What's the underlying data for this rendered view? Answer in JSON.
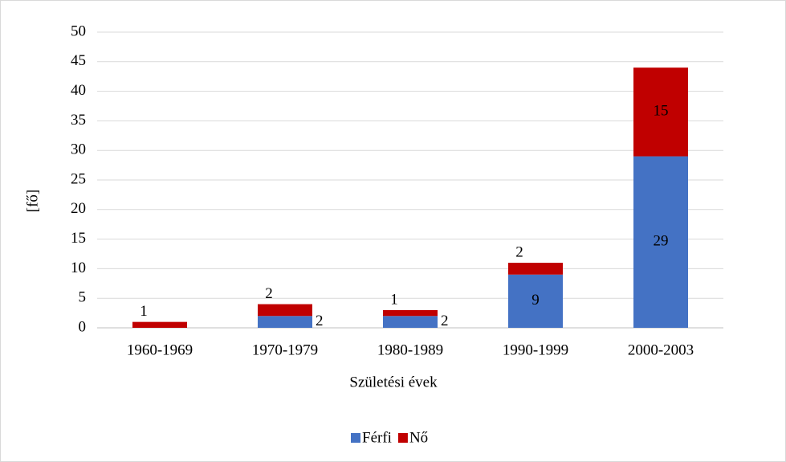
{
  "chart_data": {
    "type": "stacked_bar",
    "categories": [
      "1960-1969",
      "1970-1979",
      "1980-1989",
      "1990-1999",
      "2000-2003"
    ],
    "series": [
      {
        "name": "Férfi",
        "color": "#4472c4",
        "values": [
          null,
          2,
          2,
          9,
          29
        ]
      },
      {
        "name": "Nő",
        "color": "#c00000",
        "values": [
          1,
          2,
          1,
          2,
          15
        ]
      }
    ],
    "ylim": [
      0,
      50
    ],
    "yticks": [
      0,
      5,
      10,
      15,
      20,
      25,
      30,
      35,
      40,
      45,
      50
    ],
    "xlabel": "Születési évek",
    "ylabel": "[fő]",
    "grid": true,
    "legend": "bottom"
  }
}
